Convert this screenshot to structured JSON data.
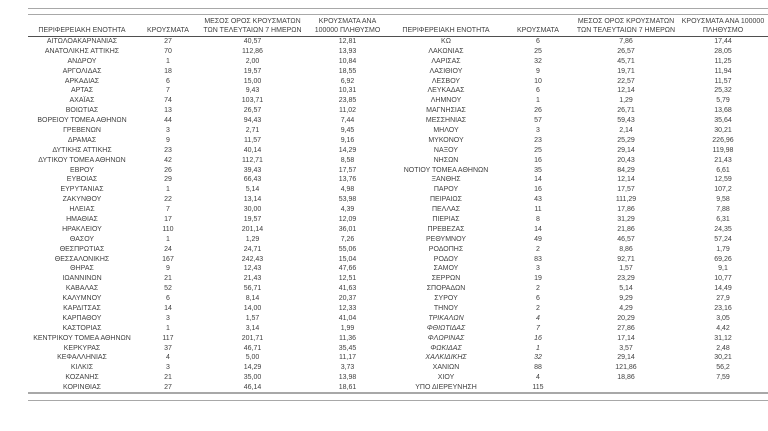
{
  "colors": {
    "background": "#ffffff",
    "text": "#3f3f3f",
    "outer_line": "#a8a8a8",
    "header_underline": "#4f4f4f"
  },
  "table": {
    "headers": {
      "region": "ΠΕΡΙΦΕΡΕΙΑΚΗ ΕΝΟΤΗΤΑ",
      "cases": "ΚΡΟΥΣΜΑΤΑ",
      "avg7day": "ΜΕΣΟΣ ΟΡΟΣ ΚΡΟΥΣΜΑΤΩΝ ΤΩΝ ΤΕΛΕΥΤΑΙΩΝ 7 ΗΜΕΡΩΝ",
      "per100k": "ΚΡΟΥΣΜΑΤΑ ΑΝΑ 100000 ΠΛΗΘΥΣΜΟ"
    },
    "left_rows": [
      {
        "region": "ΑΙΤΩΛΟΑΚΑΡΝΑΝΙΑΣ",
        "cases": "27",
        "avg": "40,57",
        "per100k": "12,81"
      },
      {
        "region": "ΑΝΑΤΟΛΙΚΗΣ ΑΤΤΙΚΗΣ",
        "cases": "70",
        "avg": "112,86",
        "per100k": "13,93"
      },
      {
        "region": "ΑΝΔΡΟΥ",
        "cases": "1",
        "avg": "2,00",
        "per100k": "10,84"
      },
      {
        "region": "ΑΡΓΟΛΙΔΑΣ",
        "cases": "18",
        "avg": "19,57",
        "per100k": "18,55"
      },
      {
        "region": "ΑΡΚΑΔΙΑΣ",
        "cases": "6",
        "avg": "15,00",
        "per100k": "6,92"
      },
      {
        "region": "ΑΡΤΑΣ",
        "cases": "7",
        "avg": "9,43",
        "per100k": "10,31"
      },
      {
        "region": "ΑΧΑΪΑΣ",
        "cases": "74",
        "avg": "103,71",
        "per100k": "23,85"
      },
      {
        "region": "ΒΟΙΩΤΙΑΣ",
        "cases": "13",
        "avg": "26,57",
        "per100k": "11,02"
      },
      {
        "region": "ΒΟΡΕΙΟΥ ΤΟΜΕΑ ΑΘΗΝΩΝ",
        "cases": "44",
        "avg": "94,43",
        "per100k": "7,44"
      },
      {
        "region": "ΓΡΕΒΕΝΩΝ",
        "cases": "3",
        "avg": "2,71",
        "per100k": "9,45"
      },
      {
        "region": "ΔΡΑΜΑΣ",
        "cases": "9",
        "avg": "11,57",
        "per100k": "9,16"
      },
      {
        "region": "ΔΥΤΙΚΗΣ ΑΤΤΙΚΗΣ",
        "cases": "23",
        "avg": "40,14",
        "per100k": "14,29"
      },
      {
        "region": "ΔΥΤΙΚΟΥ ΤΟΜΕΑ ΑΘΗΝΩΝ",
        "cases": "42",
        "avg": "112,71",
        "per100k": "8,58"
      },
      {
        "region": "ΕΒΡΟΥ",
        "cases": "26",
        "avg": "39,43",
        "per100k": "17,57"
      },
      {
        "region": "ΕΥΒΟΙΑΣ",
        "cases": "29",
        "avg": "66,43",
        "per100k": "13,76"
      },
      {
        "region": "ΕΥΡΥΤΑΝΙΑΣ",
        "cases": "1",
        "avg": "5,14",
        "per100k": "4,98"
      },
      {
        "region": "ΖΑΚΥΝΘΟΥ",
        "cases": "22",
        "avg": "13,14",
        "per100k": "53,98"
      },
      {
        "region": "ΗΛΕΙΑΣ",
        "cases": "7",
        "avg": "30,00",
        "per100k": "4,39"
      },
      {
        "region": "ΗΜΑΘΙΑΣ",
        "cases": "17",
        "avg": "19,57",
        "per100k": "12,09"
      },
      {
        "region": "ΗΡΑΚΛΕΙΟΥ",
        "cases": "110",
        "avg": "201,14",
        "per100k": "36,01"
      },
      {
        "region": "ΘΑΣΟΥ",
        "cases": "1",
        "avg": "1,29",
        "per100k": "7,26"
      },
      {
        "region": "ΘΕΣΠΡΩΤΙΑΣ",
        "cases": "24",
        "avg": "24,71",
        "per100k": "55,06"
      },
      {
        "region": "ΘΕΣΣΑΛΟΝΙΚΗΣ",
        "cases": "167",
        "avg": "242,43",
        "per100k": "15,04"
      },
      {
        "region": "ΘΗΡΑΣ",
        "cases": "9",
        "avg": "12,43",
        "per100k": "47,66"
      },
      {
        "region": "ΙΩΑΝΝΙΝΩΝ",
        "cases": "21",
        "avg": "21,43",
        "per100k": "12,51"
      },
      {
        "region": "ΚΑΒΑΛΑΣ",
        "cases": "52",
        "avg": "56,71",
        "per100k": "41,63"
      },
      {
        "region": "ΚΑΛΥΜΝΟΥ",
        "cases": "6",
        "avg": "8,14",
        "per100k": "20,37"
      },
      {
        "region": "ΚΑΡΔΙΤΣΑΣ",
        "cases": "14",
        "avg": "14,00",
        "per100k": "12,33"
      },
      {
        "region": "ΚΑΡΠΑΘΟΥ",
        "cases": "3",
        "avg": "1,57",
        "per100k": "41,04"
      },
      {
        "region": "ΚΑΣΤΟΡΙΑΣ",
        "cases": "1",
        "avg": "3,14",
        "per100k": "1,99"
      },
      {
        "region": "ΚΕΝΤΡΙΚΟΥ ΤΟΜΕΑ ΑΘΗΝΩΝ",
        "cases": "117",
        "avg": "201,71",
        "per100k": "11,36"
      },
      {
        "region": "ΚΕΡΚΥΡΑΣ",
        "cases": "37",
        "avg": "46,71",
        "per100k": "35,45"
      },
      {
        "region": "ΚΕΦΑΛΛΗΝΙΑΣ",
        "cases": "4",
        "avg": "5,00",
        "per100k": "11,17"
      },
      {
        "region": "ΚΙΛΚΙΣ",
        "cases": "3",
        "avg": "14,29",
        "per100k": "3,73"
      },
      {
        "region": "ΚΟΖΑΝΗΣ",
        "cases": "21",
        "avg": "35,00",
        "per100k": "13,98"
      },
      {
        "region": "ΚΟΡΙΝΘΙΑΣ",
        "cases": "27",
        "avg": "46,14",
        "per100k": "18,61"
      }
    ],
    "right_rows": [
      {
        "region": "ΚΩ",
        "cases": "6",
        "avg": "7,86",
        "per100k": "17,44"
      },
      {
        "region": "ΛΑΚΩΝΙΑΣ",
        "cases": "25",
        "avg": "26,57",
        "per100k": "28,05"
      },
      {
        "region": "ΛΑΡΙΣΑΣ",
        "cases": "32",
        "avg": "45,71",
        "per100k": "11,25"
      },
      {
        "region": "ΛΑΣΙΘΙΟΥ",
        "cases": "9",
        "avg": "19,71",
        "per100k": "11,94"
      },
      {
        "region": "ΛΕΣΒΟΥ",
        "cases": "10",
        "avg": "22,57",
        "per100k": "11,57"
      },
      {
        "region": "ΛΕΥΚΑΔΑΣ",
        "cases": "6",
        "avg": "12,14",
        "per100k": "25,32"
      },
      {
        "region": "ΛΗΜΝΟΥ",
        "cases": "1",
        "avg": "1,29",
        "per100k": "5,79"
      },
      {
        "region": "ΜΑΓΝΗΣΙΑΣ",
        "cases": "26",
        "avg": "26,71",
        "per100k": "13,68"
      },
      {
        "region": "ΜΕΣΣΗΝΙΑΣ",
        "cases": "57",
        "avg": "59,43",
        "per100k": "35,64"
      },
      {
        "region": "ΜΗΛΟΥ",
        "cases": "3",
        "avg": "2,14",
        "per100k": "30,21"
      },
      {
        "region": "ΜΥΚΟΝΟΥ",
        "cases": "23",
        "avg": "25,29",
        "per100k": "226,96"
      },
      {
        "region": "ΝΑΞΟΥ",
        "cases": "25",
        "avg": "29,14",
        "per100k": "119,98"
      },
      {
        "region": "ΝΗΣΩΝ",
        "cases": "16",
        "avg": "20,43",
        "per100k": "21,43"
      },
      {
        "region": "ΝΟΤΙΟΥ ΤΟΜΕΑ ΑΘΗΝΩΝ",
        "cases": "35",
        "avg": "84,29",
        "per100k": "6,61"
      },
      {
        "region": "ΞΑΝΘΗΣ",
        "cases": "14",
        "avg": "12,14",
        "per100k": "12,59"
      },
      {
        "region": "ΠΑΡΟΥ",
        "cases": "16",
        "avg": "17,57",
        "per100k": "107,2"
      },
      {
        "region": "ΠΕΙΡΑΙΩΣ",
        "cases": "43",
        "avg": "111,29",
        "per100k": "9,58"
      },
      {
        "region": "ΠΕΛΛΑΣ",
        "cases": "11",
        "avg": "17,86",
        "per100k": "7,88"
      },
      {
        "region": "ΠΙΕΡΙΑΣ",
        "cases": "8",
        "avg": "31,29",
        "per100k": "6,31"
      },
      {
        "region": "ΠΡΕΒΕΖΑΣ",
        "cases": "14",
        "avg": "21,86",
        "per100k": "24,35"
      },
      {
        "region": "ΡΕΘΥΜΝΟΥ",
        "cases": "49",
        "avg": "46,57",
        "per100k": "57,24"
      },
      {
        "region": "ΡΟΔΟΠΗΣ",
        "cases": "2",
        "avg": "8,86",
        "per100k": "1,79"
      },
      {
        "region": "ΡΟΔΟΥ",
        "cases": "83",
        "avg": "92,71",
        "per100k": "69,26"
      },
      {
        "region": "ΣΑΜΟΥ",
        "cases": "3",
        "avg": "1,57",
        "per100k": "9,1"
      },
      {
        "region": "ΣΕΡΡΩΝ",
        "cases": "19",
        "avg": "23,29",
        "per100k": "10,77"
      },
      {
        "region": "ΣΠΟΡΑΔΩΝ",
        "cases": "2",
        "avg": "5,14",
        "per100k": "14,49"
      },
      {
        "region": "ΣΥΡΟΥ",
        "cases": "6",
        "avg": "9,29",
        "per100k": "27,9"
      },
      {
        "region": "ΤΗΝΟΥ",
        "cases": "2",
        "avg": "4,29",
        "per100k": "23,16"
      },
      {
        "region": "ΤΡΙΚΑΛΩΝ",
        "cases": "4",
        "avg": "20,29",
        "per100k": "3,05",
        "italic": true
      },
      {
        "region": "ΦΘΙΩΤΙΔΑΣ",
        "cases": "7",
        "avg": "27,86",
        "per100k": "4,42",
        "italic": true
      },
      {
        "region": "ΦΛΩΡΙΝΑΣ",
        "cases": "16",
        "avg": "17,14",
        "per100k": "31,12",
        "italic": true
      },
      {
        "region": "ΦΩΚΙΔΑΣ",
        "cases": "1",
        "avg": "3,57",
        "per100k": "2,48",
        "italic": true
      },
      {
        "region": "ΧΑΛΚΙΔΙΚΗΣ",
        "cases": "32",
        "avg": "29,14",
        "per100k": "30,21",
        "italic": true
      },
      {
        "region": "ΧΑΝΙΩΝ",
        "cases": "88",
        "avg": "121,86",
        "per100k": "56,2"
      },
      {
        "region": "ΧΙΟΥ",
        "cases": "4",
        "avg": "18,86",
        "per100k": "7,59"
      },
      {
        "region": "ΥΠΟ ΔΙΕΡΕΥΝΗΣΗ",
        "cases": "115",
        "avg": "",
        "per100k": ""
      }
    ]
  }
}
